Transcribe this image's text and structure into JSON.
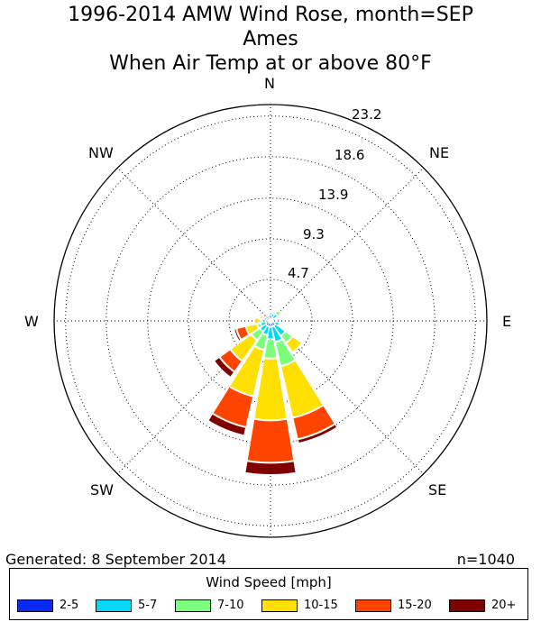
{
  "title_lines": [
    "1996-2014 AMW Wind Rose, month=SEP",
    "Ames",
    "When  Air Temp at or above 80°F"
  ],
  "footer": {
    "generated": "Generated: 8 September 2014",
    "count": "n=1040"
  },
  "legend": {
    "title": "Wind Speed [mph]",
    "items": [
      {
        "label": "2-5",
        "color": "#0a28f5"
      },
      {
        "label": "5-7",
        "color": "#00d8f5"
      },
      {
        "label": "7-10",
        "color": "#7cff7c"
      },
      {
        "label": "10-15",
        "color": "#ffe000"
      },
      {
        "label": "15-20",
        "color": "#ff4400"
      },
      {
        "label": "20+",
        "color": "#800000"
      }
    ]
  },
  "chart_data": {
    "type": "windrose",
    "title": "1996-2014 AMW Wind Rose, month=SEP",
    "directions": [
      "N",
      "NNE",
      "NE",
      "ENE",
      "E",
      "ESE",
      "SE",
      "SSE",
      "S",
      "SSW",
      "SW",
      "WSW",
      "W",
      "WNW",
      "NW",
      "NNW"
    ],
    "compass_labels": [
      "N",
      "NE",
      "E",
      "SE",
      "S",
      "SW",
      "W",
      "NW"
    ],
    "radial_ticks": [
      4.7,
      9.3,
      13.9,
      18.6,
      23.2
    ],
    "radial_max": 24.5,
    "unit": "percent of observations",
    "speed_bins": [
      "2-5",
      "5-7",
      "7-10",
      "10-15",
      "15-20",
      "20+"
    ],
    "series": [
      {
        "name": "2-5",
        "values": [
          0.6,
          0.4,
          0.3,
          0.2,
          0.1,
          0.4,
          0.6,
          0.6,
          0.6,
          0.6,
          0.6,
          0.5,
          0.5,
          0.4,
          0.4,
          0.3
        ]
      },
      {
        "name": "5-7",
        "values": [
          0.3,
          0.4,
          0.6,
          0.3,
          0.2,
          0.6,
          1.4,
          1.8,
          1.4,
          1.0,
          0.8,
          0.6,
          0.4,
          0.3,
          0.3,
          0.3
        ]
      },
      {
        "name": "7-10",
        "values": [
          0.1,
          0.1,
          0.5,
          0.1,
          0.1,
          0.2,
          1.0,
          2.8,
          2.2,
          1.7,
          1.2,
          0.4,
          0.3,
          0.2,
          0.1,
          0.1
        ]
      },
      {
        "name": "10-15",
        "values": [
          0.0,
          0.0,
          0.2,
          0.0,
          0.0,
          0.2,
          1.3,
          6.0,
          7.0,
          5.4,
          2.9,
          1.3,
          0.6,
          0.3,
          0.0,
          0.0
        ]
      },
      {
        "name": "15-20",
        "values": [
          0.0,
          0.0,
          0.0,
          0.0,
          0.0,
          0.1,
          0.0,
          2.5,
          4.8,
          3.6,
          1.5,
          1.1,
          0.0,
          0.2,
          0.0,
          0.0
        ]
      },
      {
        "name": "20+",
        "values": [
          0.0,
          0.0,
          0.0,
          0.0,
          0.0,
          0.1,
          0.0,
          0.5,
          1.4,
          1.0,
          0.8,
          0.3,
          0.0,
          0.1,
          0.0,
          0.0
        ]
      }
    ]
  }
}
